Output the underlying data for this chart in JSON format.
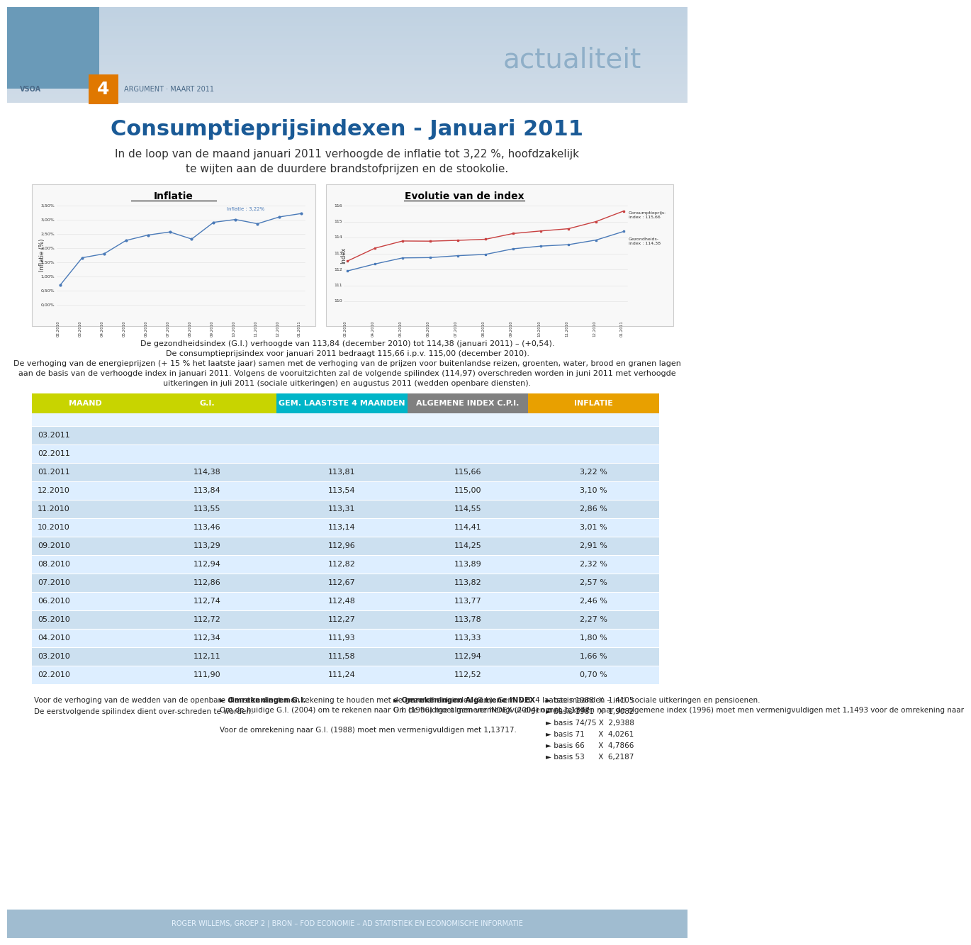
{
  "title": "Consumptieprijsindexen - Januari 2011",
  "subtitle": "In de loop van de maand januari 2011 verhoogde de inflatie tot 3,22 %, hoofdzakelijk\nte wijten aan de duurdere brandstofprijzen en de stookolie.",
  "actualiteit_text": "actualiteit",
  "header_bar": "VSOA  4   ARGUMENT · MAART 2011",
  "description_text": "De gezondheidsindex (G.I.) verhoogde van 113,84 (december 2010) tot 114,38 (januari 2011) – (+0,54).\nDe consumptieprijsindex voor januari 2011 bedraagt 115,66 i.p.v. 115,00 (december 2010).\nDe verhoging van de energieprijzen (+ 15 % het laatste jaar) samen met de verhoging van de prijzen voor buitenlandse reizen, groenten, water, brood en granen lagen\naan de basis van de verhoogde index in januari 2011. Volgens de vooruitzichten zal de volgende spilindex (114,97) overschreden worden in juni 2011 met verhoogde\nuitkeringen in juli 2011 (sociale uitkeringen) en augustus 2011 (wedden openbare diensten).",
  "table_headers": [
    "MAAND",
    "G.I.",
    "GEM. LAASTSTE 4 MAANDEN",
    "ALGEMENE INDEX C.P.I.",
    "INFLATIE"
  ],
  "table_header_colors": [
    "#c8d400",
    "#c8d400",
    "#00b5c8",
    "#808080",
    "#e8a000"
  ],
  "table_data": [
    [
      "03.2011",
      "",
      "",
      "",
      ""
    ],
    [
      "02.2011",
      "",
      "",
      "",
      ""
    ],
    [
      "01.2011",
      "114,38",
      "113,81",
      "115,66",
      "3,22 %"
    ],
    [
      "12.2010",
      "113,84",
      "113,54",
      "115,00",
      "3,10 %"
    ],
    [
      "11.2010",
      "113,55",
      "113,31",
      "114,55",
      "2,86 %"
    ],
    [
      "10.2010",
      "113,46",
      "113,14",
      "114,41",
      "3,01 %"
    ],
    [
      "09.2010",
      "113,29",
      "112,96",
      "114,25",
      "2,91 %"
    ],
    [
      "08.2010",
      "112,94",
      "112,82",
      "113,89",
      "2,32 %"
    ],
    [
      "07.2010",
      "112,86",
      "112,67",
      "113,82",
      "2,57 %"
    ],
    [
      "06.2010",
      "112,74",
      "112,48",
      "113,77",
      "2,46 %"
    ],
    [
      "05.2010",
      "112,72",
      "112,27",
      "113,78",
      "2,27 %"
    ],
    [
      "04.2010",
      "112,34",
      "111,93",
      "113,33",
      "1,80 %"
    ],
    [
      "03.2010",
      "112,11",
      "111,58",
      "112,94",
      "1,66 %"
    ],
    [
      "02.2010",
      "111,90",
      "111,24",
      "112,52",
      "0,70 %"
    ]
  ],
  "row_colors": [
    "#ddeeff",
    "#ffffff"
  ],
  "footer_col1": "Voor de verhoging van de wedden van de openbare diensten dient men rekening te houden met de gezondheidsindex (G.I.). Gem. v.d. 4 laatste maanden – incl. sociale uitkeringen en pensioenen.\nDe eerstvolgende spilindex dient over-schreden te worden.",
  "footer_col2_title": "► Omrekeningen G.I.",
  "footer_col2": "Om de huidige G.I. (2004) om te rekenen naar G.I. (1996) moet men vermenigvul-digen met 1,1377.\n\nVoor de omrekening naar G.I. (1988) moet men vermenigvuldigen met 1,13717.",
  "footer_col3_title": "► Omrekeningen Algemene INDEX",
  "footer_col3": "Om de huidige algemene INDEX (2004) om te rekenen naar de algemene index (1996) moet men vermenigvuldigen met 1,1493 voor de omrekening naar",
  "footer_col4": "► basis 1988  X  1,4105\n► basis 1981  X  1,9082\n► basis 74/75 X  2,9388\n► basis 71      X  4,0261\n► basis 66      X  4,7866\n► basis 53      X  6,2187",
  "footer_bar": "ROGER WILLEMS, GROEP 2 | BRON – FOD ECONOMIE – AD STATISTIEK EN ECONOMISCHE INFORMATIE",
  "bg_color": "#ffffff",
  "header_bg": "#aec6d8",
  "light_blue": "#ccdff0",
  "orange": "#e07800",
  "yellow_green": "#c8d400",
  "teal": "#00b5c8"
}
